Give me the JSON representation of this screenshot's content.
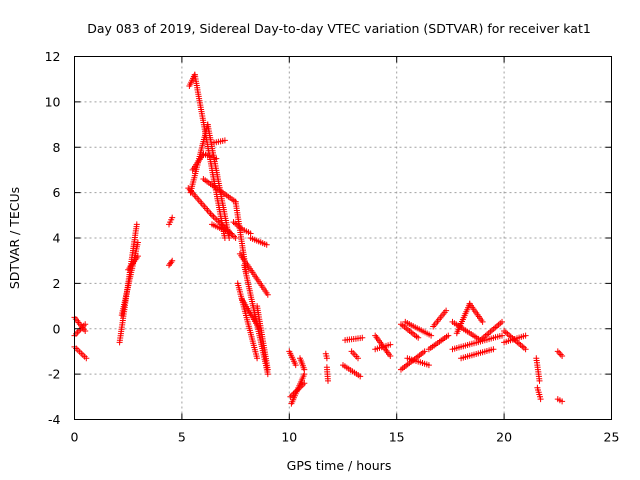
{
  "chart_data": {
    "type": "scatter",
    "title": "Day 083 of 2019, Sidereal Day-to-day VTEC variation (SDTVAR) for receiver kat1",
    "xlabel": "GPS time / hours",
    "ylabel": "SDTVAR / TECUs",
    "xlim": [
      0,
      25
    ],
    "ylim": [
      -4,
      12
    ],
    "xticks": [
      0,
      5,
      10,
      15,
      20,
      25
    ],
    "yticks": [
      -4,
      -2,
      0,
      2,
      4,
      6,
      8,
      10,
      12
    ],
    "grid": true,
    "marker": "+",
    "color": "#ff0000",
    "segments": [
      {
        "x": [
          0.0,
          0.5
        ],
        "y": [
          0.5,
          -0.1
        ]
      },
      {
        "x": [
          0.0,
          0.5
        ],
        "y": [
          -0.3,
          0.2
        ]
      },
      {
        "x": [
          0.0,
          0.55
        ],
        "y": [
          -0.8,
          -1.3
        ]
      },
      {
        "x": [
          2.1,
          2.9
        ],
        "y": [
          -0.6,
          4.6
        ]
      },
      {
        "x": [
          2.2,
          2.95
        ],
        "y": [
          0.6,
          3.8
        ]
      },
      {
        "x": [
          2.5,
          2.95
        ],
        "y": [
          2.6,
          3.2
        ]
      },
      {
        "x": [
          4.4,
          4.55
        ],
        "y": [
          4.6,
          4.9
        ]
      },
      {
        "x": [
          4.4,
          4.55
        ],
        "y": [
          2.8,
          3.0
        ]
      },
      {
        "x": [
          5.35,
          5.6
        ],
        "y": [
          10.7,
          11.2
        ]
      },
      {
        "x": [
          5.6,
          6.5
        ],
        "y": [
          11.2,
          6.5
        ]
      },
      {
        "x": [
          6.5,
          7.0
        ],
        "y": [
          6.5,
          4.0
        ]
      },
      {
        "x": [
          5.4,
          6.2
        ],
        "y": [
          6.0,
          9.0
        ]
      },
      {
        "x": [
          6.2,
          7.2
        ],
        "y": [
          9.0,
          4.0
        ]
      },
      {
        "x": [
          5.5,
          6.0
        ],
        "y": [
          7.0,
          7.7
        ]
      },
      {
        "x": [
          6.0,
          6.6
        ],
        "y": [
          7.7,
          7.5
        ]
      },
      {
        "x": [
          6.5,
          7.0
        ],
        "y": [
          8.2,
          8.3
        ]
      },
      {
        "x": [
          5.3,
          6.4
        ],
        "y": [
          6.2,
          5.0
        ]
      },
      {
        "x": [
          6.4,
          7.5
        ],
        "y": [
          5.0,
          4.0
        ]
      },
      {
        "x": [
          6.0,
          7.5
        ],
        "y": [
          6.6,
          5.6
        ]
      },
      {
        "x": [
          7.5,
          8.0
        ],
        "y": [
          5.6,
          2.5
        ]
      },
      {
        "x": [
          6.4,
          7.3
        ],
        "y": [
          4.6,
          4.2
        ]
      },
      {
        "x": [
          7.4,
          7.8
        ],
        "y": [
          4.7,
          4.4
        ]
      },
      {
        "x": [
          7.8,
          8.2
        ],
        "y": [
          4.4,
          4.2
        ]
      },
      {
        "x": [
          8.2,
          8.95
        ],
        "y": [
          4.0,
          3.7
        ]
      },
      {
        "x": [
          7.7,
          9.0
        ],
        "y": [
          3.3,
          1.5
        ]
      },
      {
        "x": [
          7.9,
          9.0
        ],
        "y": [
          2.8,
          -2.0
        ]
      },
      {
        "x": [
          7.6,
          8.5
        ],
        "y": [
          2.0,
          -1.3
        ]
      },
      {
        "x": [
          8.5,
          9.0
        ],
        "y": [
          1.0,
          -1.8
        ]
      },
      {
        "x": [
          7.8,
          8.6
        ],
        "y": [
          1.3,
          0.0
        ]
      },
      {
        "x": [
          10.05,
          10.7
        ],
        "y": [
          -3.0,
          -2.4
        ]
      },
      {
        "x": [
          10.1,
          10.7
        ],
        "y": [
          -3.3,
          -2.0
        ]
      },
      {
        "x": [
          10.0,
          10.3
        ],
        "y": [
          -1.0,
          -1.6
        ]
      },
      {
        "x": [
          10.5,
          10.7
        ],
        "y": [
          -1.3,
          -1.8
        ]
      },
      {
        "x": [
          11.7,
          11.75
        ],
        "y": [
          -1.1,
          -1.3
        ]
      },
      {
        "x": [
          11.75,
          11.8
        ],
        "y": [
          -1.7,
          -2.3
        ]
      },
      {
        "x": [
          12.5,
          13.3
        ],
        "y": [
          -1.6,
          -2.1
        ]
      },
      {
        "x": [
          12.6,
          13.4
        ],
        "y": [
          -0.5,
          -0.4
        ]
      },
      {
        "x": [
          12.9,
          13.2
        ],
        "y": [
          -1.0,
          -1.3
        ]
      },
      {
        "x": [
          14.0,
          14.7
        ],
        "y": [
          -0.3,
          -1.2
        ]
      },
      {
        "x": [
          14.0,
          14.7
        ],
        "y": [
          -0.9,
          -0.7
        ]
      },
      {
        "x": [
          15.2,
          16.3
        ],
        "y": [
          -1.8,
          -1.0
        ]
      },
      {
        "x": [
          15.2,
          16.0
        ],
        "y": [
          0.2,
          -0.4
        ]
      },
      {
        "x": [
          15.4,
          16.6
        ],
        "y": [
          0.3,
          -0.3
        ]
      },
      {
        "x": [
          15.5,
          16.5
        ],
        "y": [
          -1.3,
          -1.6
        ]
      },
      {
        "x": [
          16.5,
          17.4
        ],
        "y": [
          -0.9,
          -0.3
        ]
      },
      {
        "x": [
          16.7,
          17.3
        ],
        "y": [
          0.1,
          0.8
        ]
      },
      {
        "x": [
          17.8,
          18.4
        ],
        "y": [
          -0.2,
          1.1
        ]
      },
      {
        "x": [
          18.4,
          19.0
        ],
        "y": [
          1.1,
          0.3
        ]
      },
      {
        "x": [
          17.6,
          19.9
        ],
        "y": [
          -0.9,
          -0.3
        ]
      },
      {
        "x": [
          17.6,
          18.9
        ],
        "y": [
          0.3,
          -0.5
        ]
      },
      {
        "x": [
          18.9,
          19.9
        ],
        "y": [
          -0.5,
          0.3
        ]
      },
      {
        "x": [
          18.0,
          19.5
        ],
        "y": [
          -1.3,
          -0.9
        ]
      },
      {
        "x": [
          20.0,
          21.0
        ],
        "y": [
          -0.1,
          -0.9
        ]
      },
      {
        "x": [
          20.0,
          21.0
        ],
        "y": [
          -0.6,
          -0.3
        ]
      },
      {
        "x": [
          21.5,
          21.65
        ],
        "y": [
          -1.3,
          -2.3
        ]
      },
      {
        "x": [
          21.55,
          21.7
        ],
        "y": [
          -2.6,
          -3.1
        ]
      },
      {
        "x": [
          22.5,
          22.7
        ],
        "y": [
          -1.0,
          -1.2
        ]
      },
      {
        "x": [
          22.5,
          22.7
        ],
        "y": [
          -3.1,
          -3.2
        ]
      }
    ]
  }
}
